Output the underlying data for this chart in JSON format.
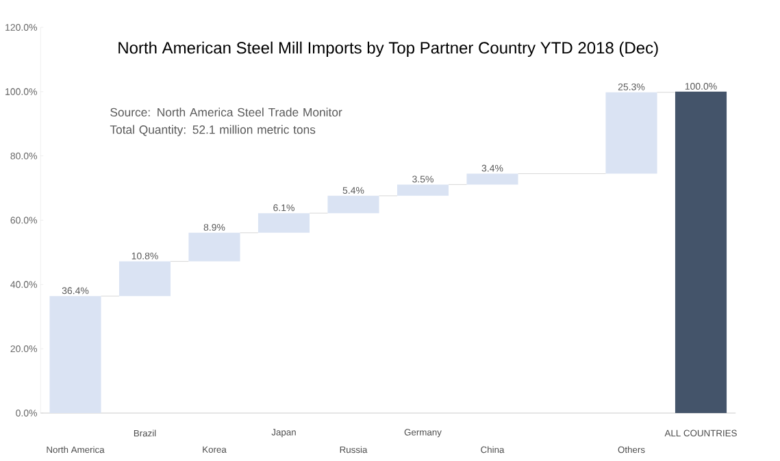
{
  "chart_data": {
    "type": "bar",
    "title": "North American Steel Mill Imports by Top Partner Country YTD 2018 (Dec)",
    "categories": [
      "North America",
      "Brazil",
      "Korea",
      "Japan",
      "Russia",
      "Germany",
      "China",
      null,
      "Others",
      "ALL COUNTRIES"
    ],
    "values": [
      36.4,
      10.8,
      8.9,
      6.1,
      5.4,
      3.5,
      3.4,
      null,
      25.3,
      100.0
    ],
    "base": [
      0,
      36.4,
      47.2,
      56.1,
      62.2,
      67.6,
      71.1,
      null,
      74.5,
      0
    ],
    "colors": [
      "#dae3f3",
      "#dae3f3",
      "#dae3f3",
      "#dae3f3",
      "#dae3f3",
      "#dae3f3",
      "#dae3f3",
      null,
      "#dae3f3",
      "#44546a"
    ],
    "value_labels": [
      "36.4%",
      "10.8%",
      "8.9%",
      "6.1%",
      "5.4%",
      "3.5%",
      "3.4%",
      null,
      "25.3%",
      "100.0%"
    ],
    "ylim": [
      0,
      120
    ],
    "yticks": [
      {
        "value": 0,
        "label": "0.0%"
      },
      {
        "value": 20,
        "label": "20.0%"
      },
      {
        "value": 40,
        "label": "40.0%"
      },
      {
        "value": 60,
        "label": "60.0%"
      },
      {
        "value": 80,
        "label": "80.0%"
      },
      {
        "value": 100,
        "label": "100.0%"
      },
      {
        "value": 120,
        "label": "120.0%"
      }
    ],
    "annotations": [
      "Source: North America Steel Trade Monitor",
      "Total Quantity: 52.1 million metric tons"
    ]
  }
}
